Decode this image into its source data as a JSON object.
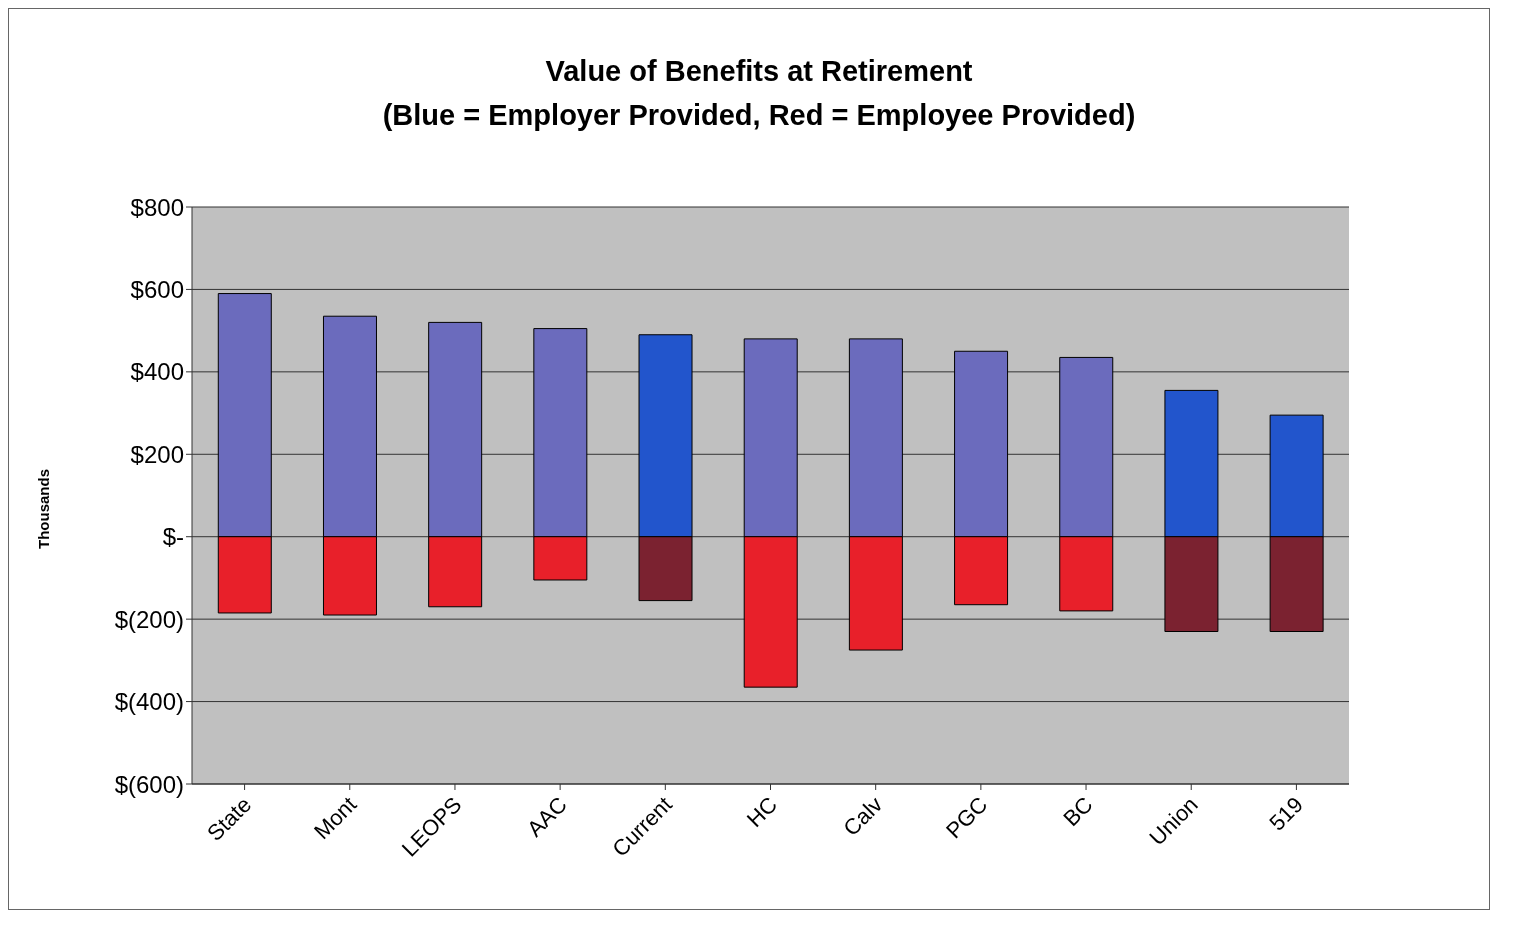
{
  "chart_data": {
    "type": "bar",
    "title": "Value of Benefits at Retirement\n(Blue = Employer Provided, Red = Employee Provided)",
    "ylabel": "Thousands",
    "categories": [
      "State",
      "Mont",
      "LEOPS",
      "AAC",
      "Current",
      "HC",
      "Calv",
      "PGC",
      "BC",
      "Union",
      "519"
    ],
    "stacked": true,
    "series": [
      {
        "colors": [
          "#6b6bbd",
          "#6b6bbd",
          "#6b6bbd",
          "#6b6bbd",
          "#2255cc",
          "#6b6bbd",
          "#6b6bbd",
          "#6b6bbd",
          "#6b6bbd",
          "#2255cc",
          "#2255cc"
        ],
        "values": [
          590,
          535,
          520,
          505,
          490,
          480,
          480,
          450,
          435,
          355,
          295
        ]
      },
      {
        "colors": [
          "#e8202a",
          "#e8202a",
          "#e8202a",
          "#e8202a",
          "#7b2230",
          "#e8202a",
          "#e8202a",
          "#e8202a",
          "#e8202a",
          "#7b2230",
          "#7b2230"
        ],
        "values": [
          -185,
          -190,
          -170,
          -105,
          -155,
          -365,
          -275,
          -165,
          -180,
          -230,
          -230
        ]
      }
    ],
    "ylim": [
      -600,
      800
    ],
    "yticks": [
      {
        "value": 800,
        "label": "$800"
      },
      {
        "value": 600,
        "label": "$600"
      },
      {
        "value": 400,
        "label": "$400"
      },
      {
        "value": 200,
        "label": "$200"
      },
      {
        "value": 0,
        "label": "$-"
      },
      {
        "value": -200,
        "label": "$(200)"
      },
      {
        "value": -400,
        "label": "$(400)"
      },
      {
        "value": -600,
        "label": "$(600)"
      }
    ],
    "grid": "y",
    "legend": false
  }
}
